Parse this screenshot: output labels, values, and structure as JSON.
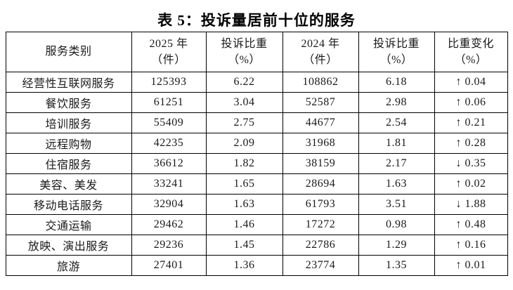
{
  "title": "表 5：投诉量居前十位的服务",
  "colors": {
    "background": "#ffffff",
    "border": "#000000",
    "text": "#1a1a1a",
    "title": "#000000"
  },
  "table": {
    "headers": [
      {
        "line1": "服务类别",
        "line2": ""
      },
      {
        "line1": "2025 年",
        "line2": "（件）"
      },
      {
        "line1": "投诉比重",
        "line2": "（%）"
      },
      {
        "line1": "2024 年",
        "line2": "（件）"
      },
      {
        "line1": "投诉比重",
        "line2": "（%）"
      },
      {
        "line1": "比重变化",
        "line2": "（%）"
      }
    ],
    "rows": [
      {
        "category": "经营性互联网服务",
        "count_2025": "125393",
        "share_2025": "6.22",
        "count_2024": "108862",
        "share_2024": "6.18",
        "change": "↑ 0.04",
        "change_direction": "up"
      },
      {
        "category": "餐饮服务",
        "count_2025": "61251",
        "share_2025": "3.04",
        "count_2024": "52587",
        "share_2024": "2.98",
        "change": "↑ 0.06",
        "change_direction": "up"
      },
      {
        "category": "培训服务",
        "count_2025": "55409",
        "share_2025": "2.75",
        "count_2024": "44677",
        "share_2024": "2.54",
        "change": "↑ 0.21",
        "change_direction": "up"
      },
      {
        "category": "远程购物",
        "count_2025": "42235",
        "share_2025": "2.09",
        "count_2024": "31968",
        "share_2024": "1.81",
        "change": "↑ 0.28",
        "change_direction": "up"
      },
      {
        "category": "住宿服务",
        "count_2025": "36612",
        "share_2025": "1.82",
        "count_2024": "38159",
        "share_2024": "2.17",
        "change": "↓ 0.35",
        "change_direction": "down"
      },
      {
        "category": "美容、美发",
        "count_2025": "33241",
        "share_2025": "1.65",
        "count_2024": "28694",
        "share_2024": "1.63",
        "change": "↑ 0.02",
        "change_direction": "up"
      },
      {
        "category": "移动电话服务",
        "count_2025": "32904",
        "share_2025": "1.63",
        "count_2024": "61793",
        "share_2024": "3.51",
        "change": "↓ 1.88",
        "change_direction": "down"
      },
      {
        "category": "交通运输",
        "count_2025": "29462",
        "share_2025": "1.46",
        "count_2024": "17272",
        "share_2024": "0.98",
        "change": "↑ 0.48",
        "change_direction": "up"
      },
      {
        "category": "放映、演出服务",
        "count_2025": "29236",
        "share_2025": "1.45",
        "count_2024": "22786",
        "share_2024": "1.29",
        "change": "↑ 0.16",
        "change_direction": "up"
      },
      {
        "category": "旅游",
        "count_2025": "27401",
        "share_2025": "1.36",
        "count_2024": "23774",
        "share_2024": "1.35",
        "change": "↑ 0.01",
        "change_direction": "up"
      }
    ]
  }
}
